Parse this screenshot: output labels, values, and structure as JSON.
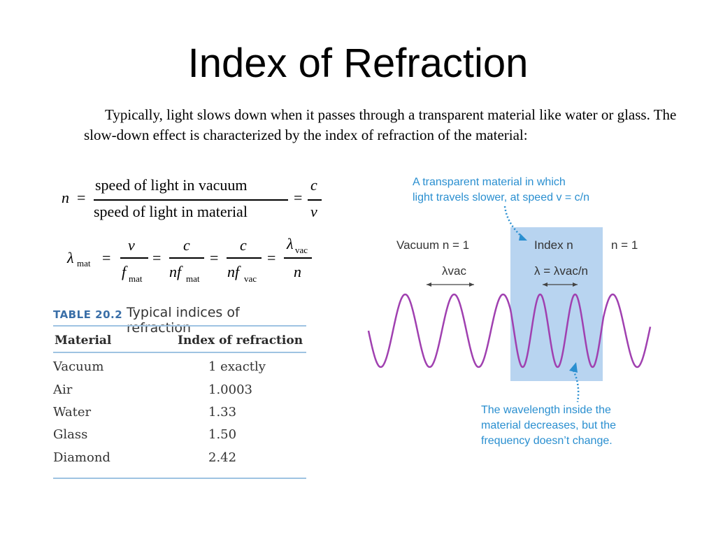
{
  "title": "Index of Refraction",
  "intro": "Typically, light slows down when it passes through a transparent material like water or glass.  The slow-down effect is characterized by the index of refraction of the material:",
  "eq1": {
    "lhs": "n",
    "eq": "=",
    "num": "speed of light in vacuum",
    "den": "speed of light in material",
    "c": "c",
    "v": "v"
  },
  "eq2": {
    "lambda": "λ",
    "mat": "mat",
    "vac": "vac",
    "v": "v",
    "f": "f",
    "c": "c",
    "nf": "nf",
    "n": "n",
    "eq": "="
  },
  "table": {
    "number": "TABLE 20.2",
    "caption": "Typical indices of refraction",
    "headers": [
      "Material",
      "Index of refraction"
    ],
    "rows": [
      [
        "Vacuum",
        "1 exactly"
      ],
      [
        "Air",
        "1.0003"
      ],
      [
        "Water",
        "1.33"
      ],
      [
        "Glass",
        "1.50"
      ],
      [
        "Diamond",
        "2.42"
      ]
    ]
  },
  "figure": {
    "top_note": [
      "A transparent material in which",
      "light travels slower, at speed v = c/n"
    ],
    "bottom_note": [
      "The wavelength inside the",
      "material decreases, but the",
      "frequency doesn’t change."
    ],
    "vacuum_label": "Vacuum n = 1",
    "index_label": "Index n",
    "n1_label": "n = 1",
    "lambda_vac": "λvac",
    "lambda_eq": "λ = λvac/n",
    "colors": {
      "wave": "#a040b0",
      "slab": "#b8d4f0",
      "note": "#2a8fd0"
    }
  }
}
